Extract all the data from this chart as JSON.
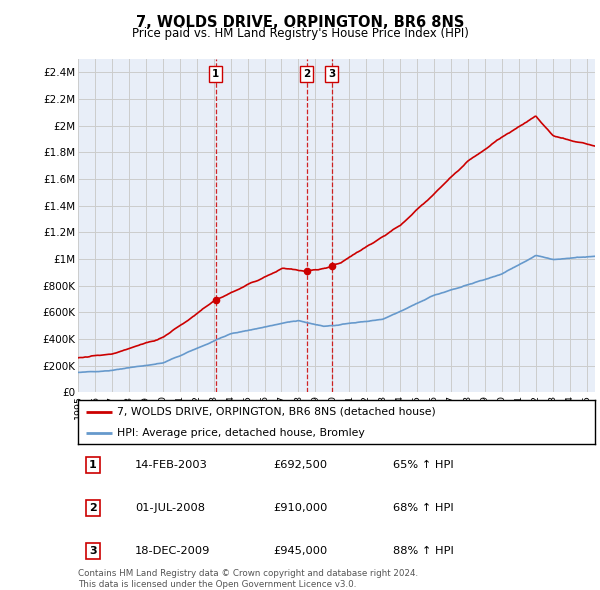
{
  "title": "7, WOLDS DRIVE, ORPINGTON, BR6 8NS",
  "subtitle": "Price paid vs. HM Land Registry's House Price Index (HPI)",
  "ylim": [
    0,
    2500000
  ],
  "yticks": [
    0,
    200000,
    400000,
    600000,
    800000,
    1000000,
    1200000,
    1400000,
    1600000,
    1800000,
    2000000,
    2200000,
    2400000
  ],
  "ytick_labels": [
    "£0",
    "£200K",
    "£400K",
    "£600K",
    "£800K",
    "£1M",
    "£1.2M",
    "£1.4M",
    "£1.6M",
    "£1.8M",
    "£2M",
    "£2.2M",
    "£2.4M"
  ],
  "sale_color": "#cc0000",
  "hpi_color": "#6699cc",
  "grid_color": "#cccccc",
  "bg_color": "#e8eef8",
  "transactions": [
    {
      "date": 2003.12,
      "price": 692500,
      "label": "1"
    },
    {
      "date": 2008.5,
      "price": 910000,
      "label": "2"
    },
    {
      "date": 2009.96,
      "price": 945000,
      "label": "3"
    }
  ],
  "sale_line_label": "7, WOLDS DRIVE, ORPINGTON, BR6 8NS (detached house)",
  "hpi_line_label": "HPI: Average price, detached house, Bromley",
  "table_rows": [
    {
      "num": "1",
      "date": "14-FEB-2003",
      "price": "£692,500",
      "pct": "65% ↑ HPI"
    },
    {
      "num": "2",
      "date": "01-JUL-2008",
      "price": "£910,000",
      "pct": "68% ↑ HPI"
    },
    {
      "num": "3",
      "date": "18-DEC-2009",
      "price": "£945,000",
      "pct": "88% ↑ HPI"
    }
  ],
  "footnote": "Contains HM Land Registry data © Crown copyright and database right 2024.\nThis data is licensed under the Open Government Licence v3.0.",
  "vline_color": "#cc0000",
  "xlim_left": 1995,
  "xlim_right": 2025.5
}
